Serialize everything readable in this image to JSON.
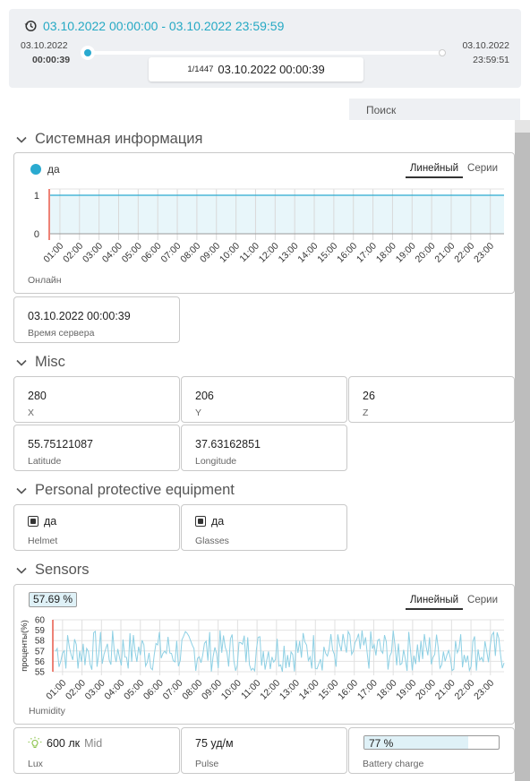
{
  "timebar": {
    "range": "03.10.2022 00:00:00 - 03.10.2022 23:59:59",
    "start_date": "03.10.2022",
    "start_time": "00:00:39",
    "end_date": "03.10.2022",
    "end_time": "23:59:51",
    "frame_index": "1/1447",
    "frame_time": "03.10.2022 00:00:39"
  },
  "search": {
    "placeholder": "Поиск"
  },
  "sections": {
    "system": "Системная информация",
    "misc": "Misc",
    "ppe": "Personal protective equipment",
    "sensors": "Sensors"
  },
  "online_chart": {
    "legend_value": "да",
    "mode_line": "Линейный",
    "mode_series": "Серии",
    "label": "Онлайн",
    "series_color": "#2aaad0"
  },
  "server_time": {
    "value": "03.10.2022 00:00:39",
    "label": "Время сервера"
  },
  "misc": {
    "x": {
      "value": "280",
      "label": "X"
    },
    "y": {
      "value": "206",
      "label": "Y"
    },
    "z": {
      "value": "26",
      "label": "Z"
    },
    "latitude": {
      "value": "55.75121087",
      "label": "Latitude"
    },
    "longitude": {
      "value": "37.63162851",
      "label": "Longitude"
    }
  },
  "ppe": {
    "helmet": {
      "value": "да",
      "label": "Helmet"
    },
    "glasses": {
      "value": "да",
      "label": "Glasses"
    }
  },
  "humidity_chart": {
    "value": "57.69 %",
    "mode_line": "Линейный",
    "mode_series": "Серии",
    "label": "Humidity",
    "ylabel": "проценты(%)"
  },
  "sensors": {
    "lux": {
      "value": "600 лк",
      "level": "Mid",
      "label": "Lux"
    },
    "pulse": {
      "value": "75 уд/м",
      "label": "Pulse"
    },
    "battery": {
      "value": "77 %",
      "label": "Battery charge",
      "level": 0.77
    }
  },
  "chart_data": [
    {
      "type": "line",
      "label": "Онлайн",
      "categories": [
        "01:00",
        "02:00",
        "03:00",
        "04:00",
        "05:00",
        "06:00",
        "07:00",
        "08:00",
        "09:00",
        "10:00",
        "11:00",
        "12:00",
        "13:00",
        "14:00",
        "15:00",
        "16:00",
        "17:00",
        "18:00",
        "19:00",
        "20:00",
        "21:00",
        "22:00",
        "23:00"
      ],
      "yticks": [
        0,
        1
      ],
      "ylim": [
        0,
        1
      ],
      "values": [
        1,
        1,
        1,
        1,
        1,
        1,
        1,
        1,
        1,
        1,
        1,
        1,
        1,
        1,
        1,
        1,
        1,
        1,
        1,
        1,
        1,
        1,
        1
      ]
    },
    {
      "type": "line",
      "label": "Humidity",
      "ylabel": "проценты(%)",
      "categories": [
        "01:00",
        "02:00",
        "03:00",
        "04:00",
        "05:00",
        "06:00",
        "07:00",
        "08:00",
        "09:00",
        "10:00",
        "11:00",
        "12:00",
        "13:00",
        "14:00",
        "15:00",
        "16:00",
        "17:00",
        "18:00",
        "19:00",
        "20:00",
        "21:00",
        "22:00",
        "23:00"
      ],
      "yticks": [
        55,
        56,
        57,
        58,
        59,
        60
      ],
      "ylim": [
        55,
        60
      ],
      "range": [
        55,
        59
      ]
    }
  ]
}
